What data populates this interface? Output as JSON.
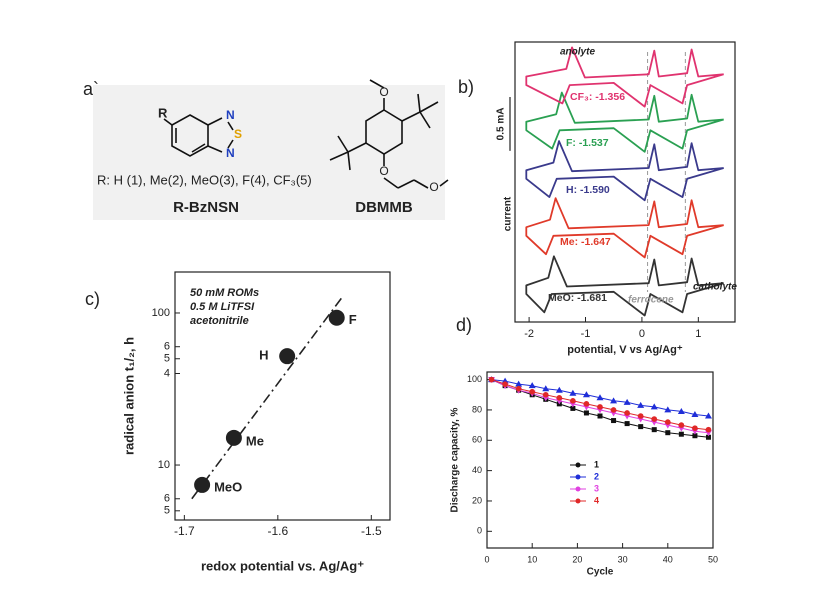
{
  "panel_labels": [
    "a`",
    "b)",
    "c)",
    "d)"
  ],
  "structures": {
    "r_label": "R",
    "bznsn_atoms": [
      "N",
      "S",
      "N"
    ],
    "dbmmb_atoms": [
      "O",
      "O",
      "O"
    ],
    "substituents": "R: H (1), Me(2), MeO(3), F(4), CF₃(5)",
    "names": [
      "R-BzNSN",
      "DBMMB"
    ]
  },
  "chart_data": [
    {
      "type": "cv",
      "xlabel": "potential, V vs Ag/Ag⁺",
      "ylabel": "current",
      "xlim": [
        -2.25,
        1.65
      ],
      "xticks": [
        -2,
        -1,
        0,
        1
      ],
      "ylim": [
        0,
        2.6
      ],
      "scale_bar": {
        "value": 0.5,
        "label": "0.5 mA"
      },
      "annotations": [
        "anolyte",
        "ferrocene",
        "catholyte"
      ],
      "reference_lines": [
        0.1,
        0.77
      ],
      "series": [
        {
          "name": "MeO: -1.681",
          "color": "#333333",
          "x": [
            1.45,
            1.0,
            0.88,
            0.8,
            0.3,
            0.22,
            0.12,
            -1.33,
            -1.56,
            -1.66,
            -2.05,
            -2.05,
            -1.73,
            -1.6,
            -0.5,
            0.05,
            0.15,
            0.72,
            0.8,
            1.45
          ],
          "values": [
            0.36,
            0.34,
            0.59,
            0.37,
            0.34,
            0.58,
            0.36,
            0.33,
            0.61,
            0.41,
            0.34,
            0.26,
            0.09,
            0.26,
            0.28,
            0.06,
            0.26,
            0.09,
            0.26,
            0.36
          ]
        },
        {
          "name": "Me: -1.647",
          "color": "#e03a2a",
          "x": [
            1.45,
            1.0,
            0.88,
            0.8,
            0.3,
            0.22,
            0.12,
            -1.3,
            -1.53,
            -1.63,
            -2.05,
            -2.05,
            -1.7,
            -1.57,
            -0.5,
            0.05,
            0.15,
            0.72,
            0.8,
            1.45
          ],
          "values": [
            0.9,
            0.88,
            1.13,
            0.91,
            0.88,
            1.12,
            0.9,
            0.87,
            1.15,
            0.95,
            0.88,
            0.8,
            0.63,
            0.8,
            0.82,
            0.6,
            0.8,
            0.63,
            0.8,
            0.9
          ]
        },
        {
          "name": "H: -1.590",
          "color": "#3a3a8c",
          "x": [
            1.45,
            1.0,
            0.88,
            0.8,
            0.3,
            0.22,
            0.12,
            -1.24,
            -1.47,
            -1.57,
            -2.05,
            -2.05,
            -1.64,
            -1.51,
            -0.5,
            0.05,
            0.15,
            0.72,
            0.8,
            1.45
          ],
          "values": [
            1.43,
            1.41,
            1.66,
            1.44,
            1.41,
            1.65,
            1.43,
            1.4,
            1.68,
            1.48,
            1.41,
            1.33,
            1.16,
            1.33,
            1.35,
            1.13,
            1.33,
            1.16,
            1.33,
            1.43
          ]
        },
        {
          "name": "F: -1.537",
          "color": "#2aa052",
          "x": [
            1.45,
            1.0,
            0.88,
            0.8,
            0.3,
            0.22,
            0.12,
            -1.19,
            -1.42,
            -1.52,
            -2.05,
            -2.05,
            -1.59,
            -1.46,
            -0.5,
            0.05,
            0.15,
            0.72,
            0.8,
            1.45
          ],
          "values": [
            1.88,
            1.86,
            2.11,
            1.89,
            1.86,
            2.1,
            1.88,
            1.85,
            2.13,
            1.93,
            1.86,
            1.78,
            1.61,
            1.78,
            1.8,
            1.58,
            1.78,
            1.61,
            1.78,
            1.88
          ]
        },
        {
          "name": "CF₃: -1.356",
          "color": "#e0336f",
          "x": [
            1.45,
            1.0,
            0.88,
            0.8,
            0.3,
            0.22,
            0.12,
            -1.01,
            -1.24,
            -1.34,
            -2.05,
            -2.05,
            -1.41,
            -1.28,
            -0.5,
            0.05,
            0.15,
            0.72,
            0.8,
            1.45
          ],
          "values": [
            2.3,
            2.28,
            2.53,
            2.31,
            2.28,
            2.52,
            2.3,
            2.27,
            2.55,
            2.35,
            2.28,
            2.2,
            2.03,
            2.2,
            2.22,
            2.0,
            2.2,
            2.03,
            2.2,
            2.3
          ]
        }
      ]
    },
    {
      "type": "scatter",
      "xlabel": "redox potential vs. Ag/Ag⁺",
      "ylabel": "radical anion t₁/₂, h",
      "annotations": [
        "50 mM ROMs",
        "0.5 M LiTFSI",
        "acetonitrile"
      ],
      "xlim": [
        -1.71,
        -1.48
      ],
      "xticks": [
        -1.7,
        -1.6,
        -1.5
      ],
      "ylim": [
        4.35,
        186
      ],
      "log_y": true,
      "yticks": [
        100,
        {
          "value": 60,
          "label": "6"
        },
        {
          "value": 50,
          "label": "5"
        },
        {
          "value": 40,
          "label": "4"
        },
        10,
        6,
        5
      ],
      "color": "#222222",
      "labels": [
        "MeO",
        "Me",
        "H",
        "F"
      ],
      "x": [
        -1.681,
        -1.647,
        -1.59,
        -1.537
      ],
      "values": [
        7.4,
        15.1,
        52,
        93
      ],
      "fit": {
        "x": [
          -1.692,
          -1.532
        ],
        "values": [
          6,
          125
        ]
      }
    },
    {
      "type": "line",
      "xlabel": "Cycle",
      "ylabel": "Discharge capacity, %",
      "xlim": [
        0,
        50
      ],
      "xticks": [
        0,
        10,
        20,
        30,
        40,
        50
      ],
      "ylim": [
        -11,
        105
      ],
      "yticks": [
        0,
        20,
        40,
        60,
        80,
        100
      ],
      "legend": "center",
      "x": [
        1,
        4,
        7,
        10,
        13,
        16,
        19,
        22,
        25,
        28,
        31,
        34,
        37,
        40,
        43,
        46,
        49
      ],
      "series": [
        {
          "name": "1",
          "color": "#111111",
          "marker": "square",
          "values": [
            100,
            96,
            93,
            90,
            87,
            84,
            81,
            78,
            76,
            73,
            71,
            69,
            67,
            65,
            64,
            63,
            62
          ]
        },
        {
          "name": "2",
          "color": "#1f2ed8",
          "marker": "triangle",
          "values": [
            100,
            99,
            97,
            96,
            94,
            93,
            91,
            90,
            88,
            86,
            85,
            83,
            82,
            80,
            79,
            77,
            76
          ]
        },
        {
          "name": "3",
          "color": "#e040e0",
          "marker": "triangle-down",
          "values": [
            100,
            96,
            93,
            91,
            88,
            86,
            84,
            82,
            80,
            78,
            76,
            74,
            72,
            70,
            68,
            66,
            65
          ]
        },
        {
          "name": "4",
          "color": "#e02828",
          "marker": "circle",
          "values": [
            100,
            97,
            94,
            92,
            90,
            88,
            86,
            84,
            82,
            80,
            78,
            76,
            74,
            72,
            70,
            68,
            67
          ]
        }
      ]
    }
  ]
}
